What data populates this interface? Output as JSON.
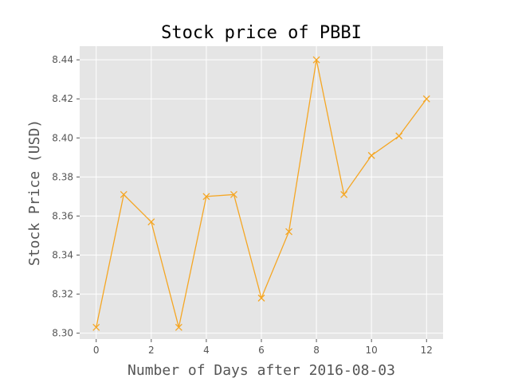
{
  "chart_data": {
    "type": "line",
    "title": "Stock price of PBBI",
    "xlabel": "Number of Days after 2016-08-03",
    "ylabel": "Stock Price (USD)",
    "x": [
      0,
      1,
      2,
      3,
      4,
      5,
      6,
      7,
      8,
      9,
      10,
      11,
      12
    ],
    "series": [
      {
        "values": [
          8.303,
          8.371,
          8.357,
          8.303,
          8.37,
          8.371,
          8.318,
          8.352,
          8.44,
          8.371,
          8.391,
          8.401,
          8.42
        ],
        "color": "#f5a623",
        "marker": "x"
      }
    ],
    "xlim": [
      -0.6,
      12.6
    ],
    "ylim": [
      8.297,
      8.447
    ],
    "xticks": [
      0,
      2,
      4,
      6,
      8,
      10,
      12
    ],
    "xtick_labels": [
      "0",
      "2",
      "4",
      "6",
      "8",
      "10",
      "12"
    ],
    "yticks": [
      8.3,
      8.32,
      8.34,
      8.36,
      8.38,
      8.4,
      8.42,
      8.44
    ],
    "ytick_labels": [
      "8.30",
      "8.32",
      "8.34",
      "8.36",
      "8.38",
      "8.40",
      "8.42",
      "8.44"
    ],
    "grid": true,
    "style": "ggplot",
    "colors": {
      "plot_background": "#e5e5e5",
      "grid": "#ffffff",
      "line": "#f5a623"
    }
  }
}
